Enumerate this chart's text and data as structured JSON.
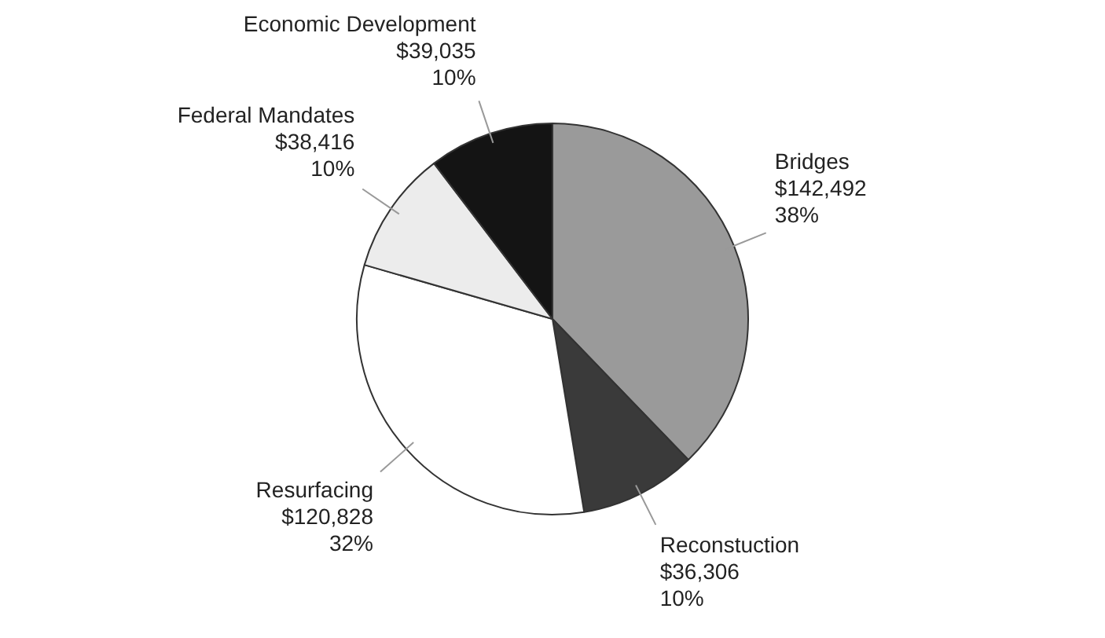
{
  "chart_data": {
    "type": "pie",
    "categories": [
      "Bridges",
      "Reconstuction",
      "Resurfacing",
      "Federal Mandates",
      "Economic Development"
    ],
    "values": [
      142492,
      36306,
      120828,
      38416,
      39035
    ],
    "colors": [
      "#9a9a9a",
      "#3a3a3a",
      "#ffffff",
      "#ececec",
      "#141414"
    ],
    "value_labels": [
      "$142,492\n38%",
      "$36,306\n10%",
      "$120,828\n32%",
      "$38,416\n10%",
      "$39,035\n10%"
    ],
    "legend": false
  }
}
